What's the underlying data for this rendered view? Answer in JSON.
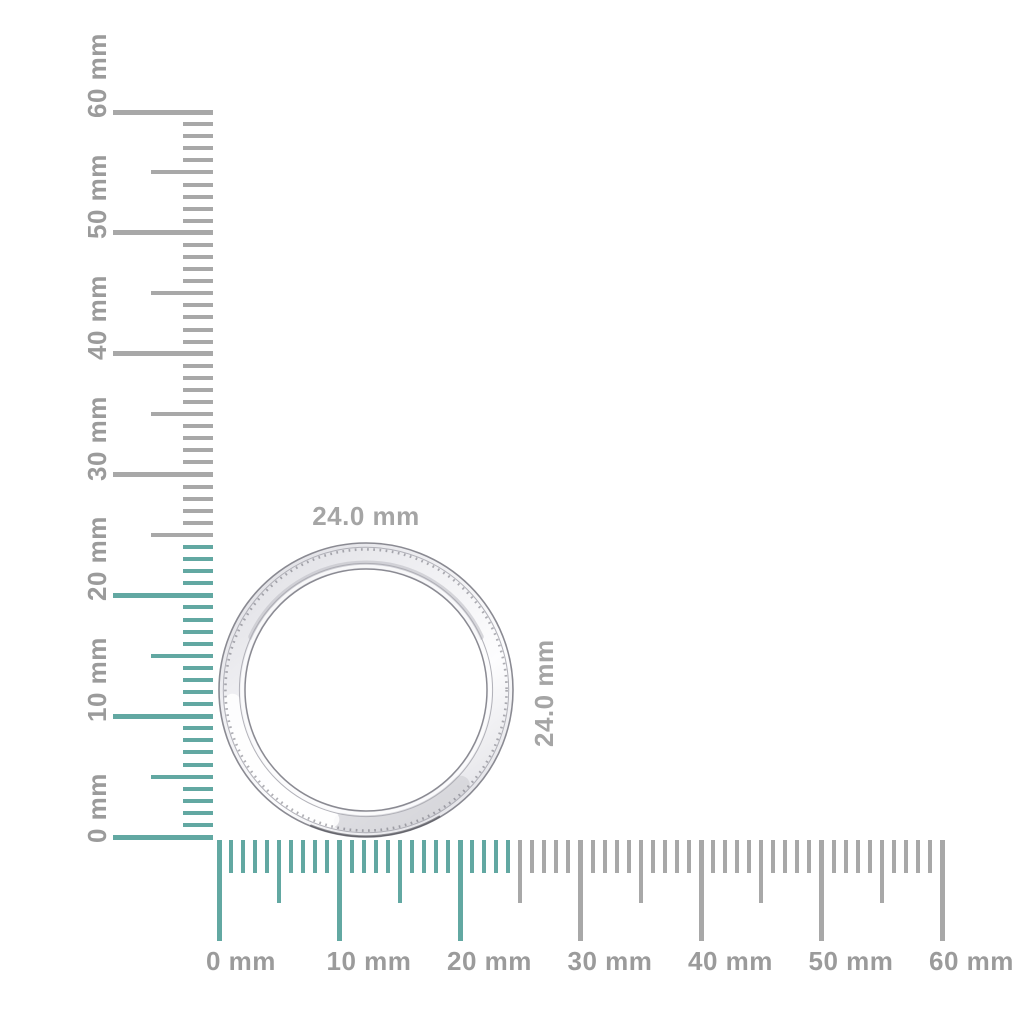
{
  "colors": {
    "highlight_teal": "#62a8a2",
    "tick_gray": "#a8a8a8",
    "ruler_label_gray": "#9b9b9b",
    "dimension_label_gray": "#a5a5a5",
    "ring_edge_gray": "#8a8a92"
  },
  "rulers": {
    "unit": "mm",
    "vertical": {
      "min_mm": 0,
      "max_mm": 60,
      "minor_step_mm": 1,
      "mid_step_mm": 5,
      "major_step_mm": 10,
      "highlight_from_mm": 0,
      "highlight_to_mm": 24,
      "major_labels": [
        "0 mm",
        "10 mm",
        "20 mm",
        "30 mm",
        "40 mm",
        "50 mm",
        "60 mm"
      ]
    },
    "horizontal": {
      "min_mm": 0,
      "max_mm": 60,
      "minor_step_mm": 1,
      "mid_step_mm": 5,
      "major_step_mm": 10,
      "highlight_from_mm": 0,
      "highlight_to_mm": 24,
      "major_labels": [
        "0 mm",
        "10 mm",
        "20 mm",
        "30 mm",
        "40 mm",
        "50 mm",
        "60 mm"
      ]
    }
  },
  "ring": {
    "width_label": "24.0 mm",
    "height_label": "24.0 mm",
    "outer_diameter_mm": 24.0
  }
}
